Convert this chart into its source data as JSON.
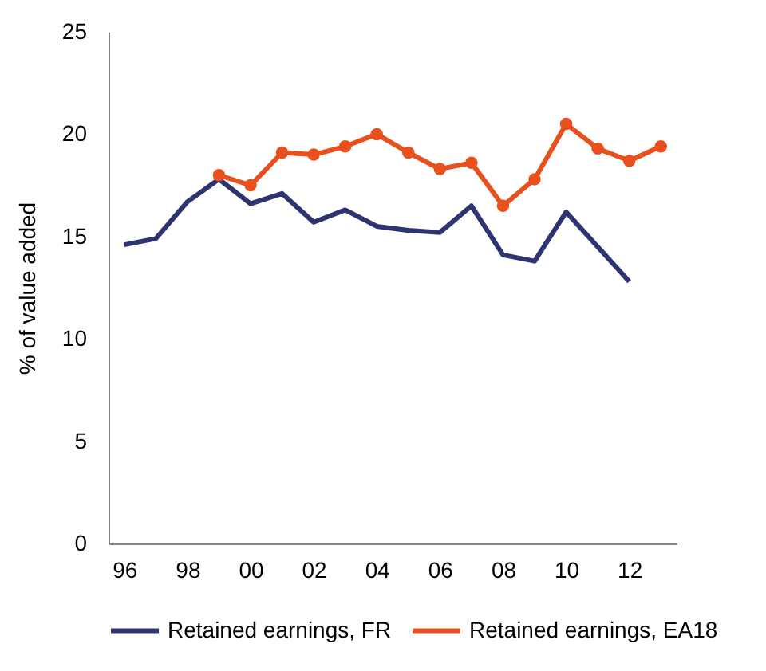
{
  "chart_data": {
    "type": "line",
    "ylabel": "% of value added",
    "xlim": [
      1995.5,
      2013.5
    ],
    "xticks": [
      {
        "value": 1996,
        "label": "96"
      },
      {
        "value": 1998,
        "label": "98"
      },
      {
        "value": 2000,
        "label": "00"
      },
      {
        "value": 2002,
        "label": "02"
      },
      {
        "value": 2004,
        "label": "04"
      },
      {
        "value": 2006,
        "label": "06"
      },
      {
        "value": 2008,
        "label": "08"
      },
      {
        "value": 2010,
        "label": "10"
      },
      {
        "value": 2012,
        "label": "12"
      }
    ],
    "ylim": [
      0,
      25
    ],
    "yticks": [
      0,
      5,
      10,
      15,
      20,
      25
    ],
    "grid": false,
    "legend": "bottom",
    "series": [
      {
        "name": "Retained earnings, FR",
        "color": "#2e3470",
        "marker": "none",
        "x": [
          1996,
          1997,
          1998,
          1999,
          2000,
          2001,
          2002,
          2003,
          2004,
          2005,
          2006,
          2007,
          2008,
          2009,
          2010,
          2011,
          2012
        ],
        "values": [
          14.6,
          14.9,
          16.7,
          17.8,
          16.6,
          17.1,
          15.7,
          16.3,
          15.5,
          15.3,
          15.2,
          16.5,
          14.1,
          13.8,
          16.2,
          14.5,
          12.8
        ]
      },
      {
        "name": "Retained earnings, EA18",
        "color": "#e8501e",
        "marker": "circle",
        "x": [
          1999,
          2000,
          2001,
          2002,
          2003,
          2004,
          2005,
          2006,
          2007,
          2008,
          2009,
          2010,
          2011,
          2012,
          2013
        ],
        "values": [
          18.0,
          17.5,
          19.1,
          19.0,
          19.4,
          20.0,
          19.1,
          18.3,
          18.6,
          16.5,
          17.8,
          20.5,
          19.3,
          18.7,
          19.4
        ]
      }
    ]
  }
}
